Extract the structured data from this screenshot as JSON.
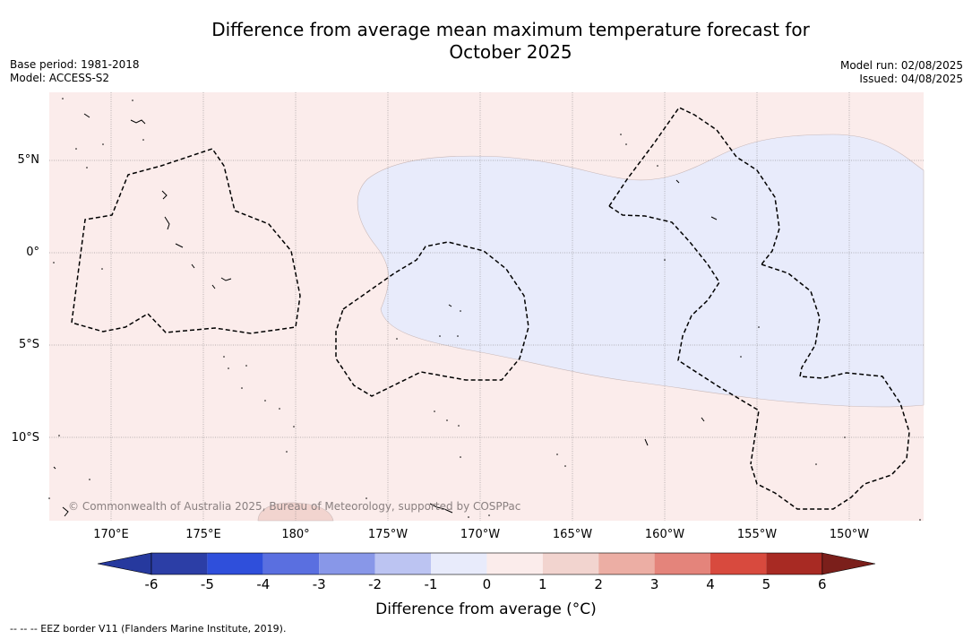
{
  "title_line1": "Difference from average mean maximum temperature forecast for",
  "title_line2": "October 2025",
  "base_period": "Base period: 1981-2018",
  "model": "Model: ACCESS-S2",
  "model_run": "Model run: 02/08/2025",
  "issued": "Issued: 04/08/2025",
  "copyright": "© Commonwealth of Australia 2025, Bureau of Meteorology, supported by COSPPac",
  "lat_labels": [
    "5°N",
    "0°",
    "5°S",
    "10°S"
  ],
  "lon_labels": [
    "170°E",
    "175°E",
    "180°",
    "175°W",
    "170°W",
    "165°W",
    "160°W",
    "155°W",
    "150°W"
  ],
  "colorbar": {
    "title": "Difference from average (°C)",
    "ticks": [
      "-6",
      "-5",
      "-4",
      "-3",
      "-2",
      "-1",
      "0",
      "1",
      "2",
      "3",
      "4",
      "5",
      "6"
    ],
    "colors": [
      "#26399e",
      "#2c3ea6",
      "#2f4fdb",
      "#5a6fe0",
      "#8897e8",
      "#bcc4f2",
      "#e8ebfb",
      "#fbeceb",
      "#f2d4cf",
      "#ecaea4",
      "#e4847b",
      "#d84a3e",
      "#a82a23",
      "#7b1f1b"
    ]
  },
  "legend_footer": "--  --  -- EEZ border V11 (Flanders Marine Institute, 2019).",
  "colors": {
    "warm_shading": "#fbeceb",
    "cool_shading": "#e8ebfb",
    "warmer_shading": "#f2d4cf"
  }
}
